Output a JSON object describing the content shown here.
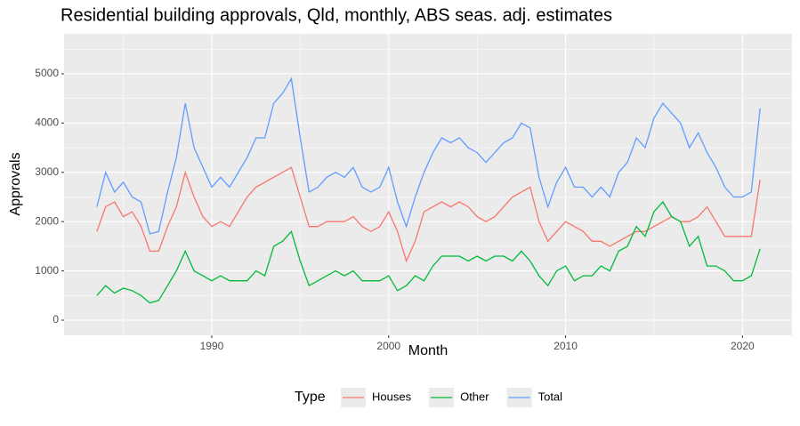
{
  "chart_data": {
    "type": "line",
    "title": "Residential building approvals, Qld, monthly, ABS seas. adj. estimates",
    "xlabel": "Month",
    "ylabel": "Approvals",
    "legend_title": "Type",
    "legend_position": "bottom",
    "grid": true,
    "xlim": [
      1981.65,
      2022.8
    ],
    "ylim": [
      -307,
      5812
    ],
    "xticks": [
      1990,
      2000,
      2010,
      2020
    ],
    "yticks": [
      0,
      1000,
      2000,
      3000,
      4000,
      5000
    ],
    "x": [
      1983.5,
      1984,
      1984.5,
      1985,
      1985.5,
      1986,
      1986.5,
      1987,
      1987.5,
      1988,
      1988.5,
      1989,
      1989.5,
      1990,
      1990.5,
      1991,
      1991.5,
      1992,
      1992.5,
      1993,
      1993.5,
      1994,
      1994.5,
      1995,
      1995.5,
      1996,
      1996.5,
      1997,
      1997.5,
      1998,
      1998.5,
      1999,
      1999.5,
      2000,
      2000.5,
      2001,
      2001.5,
      2002,
      2002.5,
      2003,
      2003.5,
      2004,
      2004.5,
      2005,
      2005.5,
      2006,
      2006.5,
      2007,
      2007.5,
      2008,
      2008.5,
      2009,
      2009.5,
      2010,
      2010.5,
      2011,
      2011.5,
      2012,
      2012.5,
      2013,
      2013.5,
      2014,
      2014.5,
      2015,
      2015.5,
      2016,
      2016.5,
      2017,
      2017.5,
      2018,
      2018.5,
      2019,
      2019.5,
      2020,
      2020.5,
      2021
    ],
    "series": [
      {
        "name": "Houses",
        "color": "#f8766d",
        "values": [
          1800,
          2300,
          2400,
          2100,
          2200,
          1900,
          1400,
          1400,
          1900,
          2300,
          3000,
          2500,
          2100,
          1900,
          2000,
          1900,
          2200,
          2500,
          2700,
          2800,
          2900,
          3000,
          3100,
          2500,
          1900,
          1900,
          2000,
          2000,
          2000,
          2100,
          1900,
          1800,
          1900,
          2200,
          1800,
          1200,
          1600,
          2200,
          2300,
          2400,
          2300,
          2400,
          2300,
          2100,
          2000,
          2100,
          2300,
          2500,
          2600,
          2700,
          2000,
          1600,
          1800,
          2000,
          1900,
          1800,
          1600,
          1600,
          1500,
          1600,
          1700,
          1800,
          1800,
          1900,
          2000,
          2100,
          2000,
          2000,
          2100,
          2300,
          2000,
          1700,
          1700,
          1700,
          1700,
          2850
        ]
      },
      {
        "name": "Other",
        "color": "#00ba38",
        "values": [
          500,
          700,
          550,
          650,
          600,
          500,
          350,
          400,
          700,
          1000,
          1400,
          1000,
          900,
          800,
          900,
          800,
          800,
          800,
          1000,
          900,
          1500,
          1600,
          1800,
          1200,
          700,
          800,
          900,
          1000,
          900,
          1000,
          800,
          800,
          800,
          900,
          600,
          700,
          900,
          800,
          1100,
          1300,
          1300,
          1300,
          1200,
          1300,
          1200,
          1300,
          1300,
          1200,
          1400,
          1200,
          900,
          700,
          1000,
          1100,
          800,
          900,
          900,
          1100,
          1000,
          1400,
          1500,
          1900,
          1700,
          2200,
          2400,
          2100,
          2000,
          1500,
          1700,
          1100,
          1100,
          1000,
          800,
          800,
          900,
          1450
        ]
      },
      {
        "name": "Total",
        "color": "#619cff",
        "values": [
          2300,
          3000,
          2600,
          2800,
          2500,
          2400,
          1750,
          1800,
          2600,
          3300,
          4400,
          3500,
          3100,
          2700,
          2900,
          2700,
          3000,
          3300,
          3700,
          3700,
          4400,
          4600,
          4900,
          3700,
          2600,
          2700,
          2900,
          3000,
          2900,
          3100,
          2700,
          2600,
          2700,
          3100,
          2400,
          1900,
          2500,
          3000,
          3400,
          3700,
          3600,
          3700,
          3500,
          3400,
          3200,
          3400,
          3600,
          3700,
          4000,
          3900,
          2900,
          2300,
          2800,
          3100,
          2700,
          2700,
          2500,
          2700,
          2500,
          3000,
          3200,
          3700,
          3500,
          4100,
          4400,
          4200,
          4000,
          3500,
          3800,
          3400,
          3100,
          2700,
          2500,
          2500,
          2600,
          4300
        ]
      }
    ]
  }
}
